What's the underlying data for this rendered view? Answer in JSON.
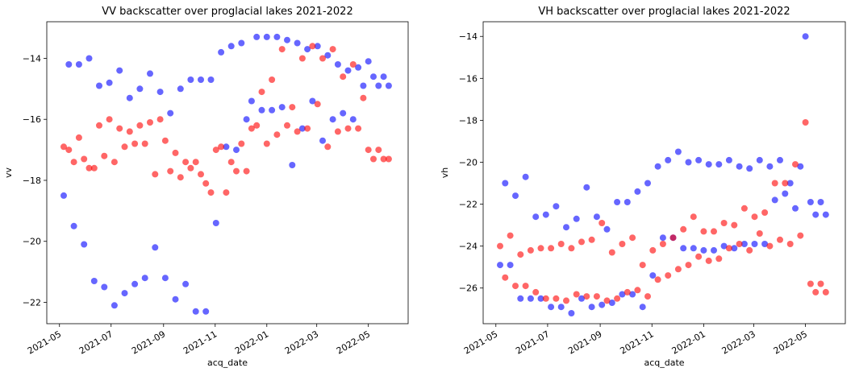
{
  "chart_data": [
    {
      "type": "scatter",
      "title": "VV backscatter over proglacial lakes 2021-2022",
      "xlabel": "acq_date",
      "ylabel": "vv",
      "xticks": [
        "2021-05",
        "2021-07",
        "2021-09",
        "2021-11",
        "2022-01",
        "2022-03",
        "2022-05"
      ],
      "yticks": [
        -14,
        -16,
        -18,
        -20,
        -22
      ],
      "xlim": [
        "2021-04-16",
        "2022-06-17"
      ],
      "ylim": [
        -22.7,
        -12.8
      ],
      "grid": false,
      "series": [
        {
          "color": "#0000ff",
          "x": [
            "2021-05-06",
            "2021-05-12",
            "2021-05-18",
            "2021-05-24",
            "2021-05-30",
            "2021-06-05",
            "2021-06-11",
            "2021-06-17",
            "2021-06-23",
            "2021-06-29",
            "2021-07-05",
            "2021-07-11",
            "2021-07-17",
            "2021-07-23",
            "2021-07-29",
            "2021-08-04",
            "2021-08-10",
            "2021-08-16",
            "2021-08-22",
            "2021-08-28",
            "2021-09-03",
            "2021-09-09",
            "2021-09-15",
            "2021-09-21",
            "2021-09-27",
            "2021-10-03",
            "2021-10-09",
            "2021-10-15",
            "2021-10-21",
            "2021-10-27",
            "2021-11-02",
            "2021-11-08",
            "2021-11-14",
            "2021-11-20",
            "2021-11-26",
            "2021-12-02",
            "2021-12-08",
            "2021-12-14",
            "2021-12-20",
            "2021-12-26",
            "2022-01-01",
            "2022-01-07",
            "2022-01-13",
            "2022-01-19",
            "2022-01-25",
            "2022-01-31",
            "2022-02-06",
            "2022-02-12",
            "2022-02-18",
            "2022-02-24",
            "2022-03-02",
            "2022-03-08",
            "2022-03-14",
            "2022-03-20",
            "2022-03-26",
            "2022-04-01",
            "2022-04-07",
            "2022-04-13",
            "2022-04-19",
            "2022-04-25",
            "2022-05-01",
            "2022-05-07",
            "2022-05-13",
            "2022-05-19",
            "2022-05-25"
          ],
          "y": [
            -18.5,
            -14.2,
            -19.5,
            -14.2,
            -20.1,
            -14.0,
            -21.3,
            -14.9,
            -21.5,
            -14.8,
            -22.1,
            -14.4,
            -21.7,
            -15.3,
            -21.4,
            -15.0,
            -21.2,
            -14.5,
            -20.2,
            -15.1,
            -21.2,
            -15.8,
            -21.9,
            -15.0,
            -21.4,
            -14.7,
            -22.3,
            -14.7,
            -22.3,
            -14.7,
            -19.4,
            -13.8,
            -16.9,
            -13.6,
            -17.0,
            -13.5,
            -16.0,
            -15.4,
            -13.3,
            -15.7,
            -13.3,
            -15.7,
            -13.3,
            -15.6,
            -13.4,
            -17.5,
            -13.5,
            -16.3,
            -13.7,
            -15.4,
            -13.6,
            -16.7,
            -13.9,
            -16.0,
            -14.2,
            -15.8,
            -14.4,
            -16.0,
            -14.3,
            -14.9,
            -14.1,
            -14.6,
            -14.9,
            -14.6,
            -14.9
          ]
        },
        {
          "color": "#ff0000",
          "x": [
            "2021-05-06",
            "2021-05-12",
            "2021-05-18",
            "2021-05-24",
            "2021-05-30",
            "2021-06-05",
            "2021-06-11",
            "2021-06-17",
            "2021-06-23",
            "2021-06-29",
            "2021-07-05",
            "2021-07-11",
            "2021-07-17",
            "2021-07-23",
            "2021-07-29",
            "2021-08-04",
            "2021-08-10",
            "2021-08-16",
            "2021-08-22",
            "2021-08-28",
            "2021-09-03",
            "2021-09-09",
            "2021-09-15",
            "2021-09-21",
            "2021-09-27",
            "2021-10-03",
            "2021-10-09",
            "2021-10-15",
            "2021-10-21",
            "2021-10-27",
            "2021-11-02",
            "2021-11-08",
            "2021-11-14",
            "2021-11-20",
            "2021-11-26",
            "2021-12-02",
            "2021-12-08",
            "2021-12-14",
            "2021-12-20",
            "2021-12-26",
            "2022-01-01",
            "2022-01-07",
            "2022-01-13",
            "2022-01-19",
            "2022-01-25",
            "2022-01-31",
            "2022-02-06",
            "2022-02-12",
            "2022-02-18",
            "2022-02-24",
            "2022-03-02",
            "2022-03-08",
            "2022-03-14",
            "2022-03-20",
            "2022-03-26",
            "2022-04-01",
            "2022-04-07",
            "2022-04-13",
            "2022-04-19",
            "2022-04-25",
            "2022-05-01",
            "2022-05-07",
            "2022-05-13",
            "2022-05-19",
            "2022-05-25"
          ],
          "y": [
            -16.9,
            -17.0,
            -17.4,
            -16.6,
            -17.3,
            -17.6,
            -17.6,
            -16.2,
            -17.2,
            -16.0,
            -17.4,
            -16.3,
            -16.9,
            -16.4,
            -16.8,
            -16.2,
            -16.8,
            -16.1,
            -17.8,
            -16.0,
            -16.7,
            -17.7,
            -17.1,
            -17.9,
            -17.4,
            -17.6,
            -17.4,
            -17.8,
            -18.1,
            -18.4,
            -17.0,
            -16.9,
            -18.4,
            -17.4,
            -17.7,
            -16.8,
            -17.7,
            -16.3,
            -16.2,
            -15.1,
            -16.8,
            -14.7,
            -16.5,
            -13.7,
            -16.2,
            -15.6,
            -16.4,
            -14.0,
            -16.3,
            -13.6,
            -15.5,
            -14.0,
            -16.9,
            -13.7,
            -16.4,
            -14.6,
            -16.3,
            -14.2,
            -16.3,
            -15.3,
            -17.0,
            -17.3,
            -17.0,
            -17.3,
            -17.3
          ]
        }
      ]
    },
    {
      "type": "scatter",
      "title": "VH backscatter over proglacial lakes 2021-2022",
      "xlabel": "acq_date",
      "ylabel": "vh",
      "xticks": [
        "2021-05",
        "2021-07",
        "2021-09",
        "2021-11",
        "2022-01",
        "2022-03",
        "2022-05"
      ],
      "yticks": [
        -14,
        -16,
        -18,
        -20,
        -22,
        -24,
        -26
      ],
      "xlim": [
        "2021-04-16",
        "2022-06-17"
      ],
      "ylim": [
        -27.7,
        -13.3
      ],
      "grid": false,
      "series": [
        {
          "color": "#0000ff",
          "x": [
            "2021-05-06",
            "2021-05-12",
            "2021-05-18",
            "2021-05-24",
            "2021-05-30",
            "2021-06-05",
            "2021-06-11",
            "2021-06-17",
            "2021-06-23",
            "2021-06-29",
            "2021-07-05",
            "2021-07-11",
            "2021-07-17",
            "2021-07-23",
            "2021-07-29",
            "2021-08-04",
            "2021-08-10",
            "2021-08-16",
            "2021-08-22",
            "2021-08-28",
            "2021-09-03",
            "2021-09-09",
            "2021-09-15",
            "2021-09-21",
            "2021-09-27",
            "2021-10-03",
            "2021-10-09",
            "2021-10-15",
            "2021-10-21",
            "2021-10-27",
            "2021-11-02",
            "2021-11-08",
            "2021-11-14",
            "2021-11-20",
            "2021-11-26",
            "2021-12-02",
            "2021-12-08",
            "2021-12-14",
            "2021-12-20",
            "2021-12-26",
            "2022-01-01",
            "2022-01-07",
            "2022-01-13",
            "2022-01-19",
            "2022-01-25",
            "2022-01-31",
            "2022-02-06",
            "2022-02-12",
            "2022-02-18",
            "2022-02-24",
            "2022-03-02",
            "2022-03-08",
            "2022-03-14",
            "2022-03-20",
            "2022-03-26",
            "2022-04-01",
            "2022-04-07",
            "2022-04-13",
            "2022-04-19",
            "2022-04-25",
            "2022-05-01",
            "2022-05-07",
            "2022-05-13",
            "2022-05-19",
            "2022-05-25"
          ],
          "y": [
            -24.9,
            -21.0,
            -24.9,
            -21.6,
            -26.5,
            -20.7,
            -26.5,
            -22.6,
            -26.5,
            -22.5,
            -26.9,
            -22.1,
            -26.9,
            -23.1,
            -27.2,
            -22.7,
            -26.5,
            -21.2,
            -26.9,
            -22.6,
            -26.8,
            -23.2,
            -26.7,
            -21.9,
            -26.3,
            -21.9,
            -26.3,
            -21.4,
            -26.9,
            -21.0,
            -25.4,
            -20.2,
            -23.6,
            -19.9,
            -23.6,
            -19.5,
            -24.1,
            -20.0,
            -24.1,
            -19.9,
            -24.2,
            -20.1,
            -24.2,
            -20.1,
            -24.0,
            -19.9,
            -24.1,
            -20.2,
            -23.9,
            -20.3,
            -23.9,
            -19.9,
            -23.9,
            -20.2,
            -21.8,
            -19.9,
            -21.5,
            -21.0,
            -22.2,
            -20.2,
            -14.0,
            -21.9,
            -22.5,
            -21.9,
            -22.5
          ]
        },
        {
          "color": "#ff0000",
          "x": [
            "2021-05-06",
            "2021-05-12",
            "2021-05-18",
            "2021-05-24",
            "2021-05-30",
            "2021-06-05",
            "2021-06-11",
            "2021-06-17",
            "2021-06-23",
            "2021-06-29",
            "2021-07-05",
            "2021-07-11",
            "2021-07-17",
            "2021-07-23",
            "2021-07-29",
            "2021-08-04",
            "2021-08-10",
            "2021-08-16",
            "2021-08-22",
            "2021-08-28",
            "2021-09-03",
            "2021-09-09",
            "2021-09-15",
            "2021-09-21",
            "2021-09-27",
            "2021-10-03",
            "2021-10-09",
            "2021-10-15",
            "2021-10-21",
            "2021-10-27",
            "2021-11-02",
            "2021-11-08",
            "2021-11-14",
            "2021-11-20",
            "2021-11-26",
            "2021-12-02",
            "2021-12-08",
            "2021-12-14",
            "2021-12-20",
            "2021-12-26",
            "2022-01-01",
            "2022-01-07",
            "2022-01-13",
            "2022-01-19",
            "2022-01-25",
            "2022-01-31",
            "2022-02-06",
            "2022-02-12",
            "2022-02-18",
            "2022-02-24",
            "2022-03-02",
            "2022-03-08",
            "2022-03-14",
            "2022-03-20",
            "2022-03-26",
            "2022-04-01",
            "2022-04-07",
            "2022-04-13",
            "2022-04-19",
            "2022-04-25",
            "2022-05-01",
            "2022-05-07",
            "2022-05-13",
            "2022-05-19",
            "2022-05-25"
          ],
          "y": [
            -24.0,
            -25.5,
            -23.5,
            -25.9,
            -24.4,
            -25.9,
            -24.2,
            -26.2,
            -24.1,
            -26.5,
            -24.1,
            -26.5,
            -23.9,
            -26.6,
            -24.1,
            -26.3,
            -23.8,
            -26.4,
            -23.7,
            -26.4,
            -22.9,
            -26.6,
            -24.3,
            -26.5,
            -23.9,
            -26.2,
            -23.6,
            -26.1,
            -24.9,
            -26.4,
            -24.2,
            -25.6,
            -23.9,
            -25.4,
            -23.6,
            -25.1,
            -23.2,
            -24.9,
            -22.6,
            -24.5,
            -23.3,
            -24.7,
            -23.3,
            -24.6,
            -22.9,
            -24.1,
            -23.0,
            -23.9,
            -22.2,
            -24.2,
            -22.6,
            -23.4,
            -22.4,
            -24.0,
            -21.0,
            -23.7,
            -21.0,
            -23.9,
            -20.1,
            -23.5,
            -18.1,
            -25.8,
            -26.2,
            -25.8,
            -26.2
          ]
        }
      ]
    }
  ]
}
